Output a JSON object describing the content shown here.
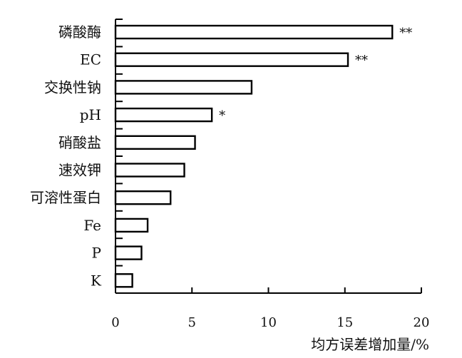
{
  "chart_data": {
    "type": "bar",
    "orientation": "horizontal",
    "categories": [
      "磷酸酶",
      "EC",
      "交换性钠",
      "pH",
      "硝酸盐",
      "速效钾",
      "可溶性蛋白",
      "Fe",
      "P",
      "K"
    ],
    "values": [
      18.1,
      15.2,
      8.9,
      6.3,
      5.2,
      4.5,
      3.6,
      2.1,
      1.7,
      1.1
    ],
    "significance": [
      "**",
      "**",
      "",
      "*",
      "",
      "",
      "",
      "",
      "",
      ""
    ],
    "xlabel": "均方误差增加量/%",
    "xlim": [
      0,
      20
    ],
    "xticks": [
      "0",
      "5",
      "10",
      "15",
      "20"
    ],
    "grid": false,
    "legend": "none",
    "bar_fill": "#ffffff",
    "bar_stroke": "#000000"
  }
}
